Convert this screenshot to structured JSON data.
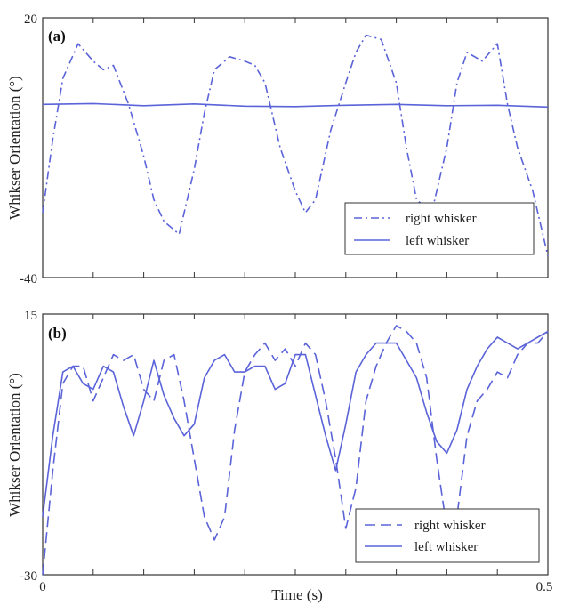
{
  "colors": {
    "series": "#5a63d8",
    "frame": "#333333",
    "background": "#ffffff"
  },
  "x_axis_title": "Time (s)",
  "chart_data": [
    {
      "type": "line",
      "panel_label": "(a)",
      "ylabel": "Whikser Orientation (°)",
      "xlabel": "",
      "xlim": [
        0,
        0.5
      ],
      "ylim": [
        -40,
        20
      ],
      "yticks_labeled": [
        -40,
        20
      ],
      "legend": {
        "placement": "bottom-right",
        "entries": [
          "right whisker",
          "left whisker"
        ]
      },
      "series": [
        {
          "name": "right whisker",
          "style": "dash-dot",
          "x": [
            0,
            0.01,
            0.02,
            0.035,
            0.05,
            0.06,
            0.07,
            0.085,
            0.1,
            0.11,
            0.12,
            0.135,
            0.15,
            0.16,
            0.17,
            0.185,
            0.2,
            0.21,
            0.22,
            0.235,
            0.25,
            0.26,
            0.27,
            0.285,
            0.3,
            0.31,
            0.32,
            0.335,
            0.35,
            0.36,
            0.37,
            0.385,
            0.4,
            0.41,
            0.42,
            0.435,
            0.45,
            0.46,
            0.47,
            0.485,
            0.5
          ],
          "values": [
            -25,
            -8,
            6,
            14,
            10,
            8,
            9,
            0,
            -12,
            -22,
            -27,
            -30,
            -15,
            -2,
            8,
            11,
            10,
            9,
            5,
            -10,
            -20,
            -25,
            -22,
            -6,
            5,
            12,
            16,
            15,
            5,
            -10,
            -22,
            -25,
            -10,
            5,
            12,
            10,
            14,
            0,
            -10,
            -20,
            -35
          ]
        },
        {
          "name": "left whisker",
          "style": "solid",
          "x": [
            0,
            0.05,
            0.1,
            0.15,
            0.2,
            0.25,
            0.3,
            0.35,
            0.4,
            0.45,
            0.5
          ],
          "values": [
            0,
            0.2,
            -0.3,
            0.1,
            -0.4,
            -0.5,
            -0.2,
            0.0,
            -0.3,
            -0.2,
            -0.6
          ]
        }
      ]
    },
    {
      "type": "line",
      "panel_label": "(b)",
      "ylabel": "Whikser Orientation (°)",
      "xlabel": "Time (s)",
      "xlim": [
        0,
        0.5
      ],
      "ylim": [
        -30,
        15
      ],
      "xticks_labeled": [
        "0",
        "0.5"
      ],
      "yticks_labeled": [
        -30,
        15
      ],
      "legend": {
        "placement": "bottom-right",
        "entries": [
          "right whisker",
          "left whisker"
        ]
      },
      "series": [
        {
          "name": "right whisker",
          "style": "dashed",
          "x": [
            0,
            0.01,
            0.02,
            0.03,
            0.04,
            0.05,
            0.06,
            0.07,
            0.08,
            0.09,
            0.1,
            0.11,
            0.12,
            0.13,
            0.14,
            0.15,
            0.16,
            0.17,
            0.18,
            0.19,
            0.2,
            0.21,
            0.22,
            0.23,
            0.24,
            0.25,
            0.26,
            0.27,
            0.28,
            0.29,
            0.3,
            0.31,
            0.32,
            0.33,
            0.34,
            0.35,
            0.36,
            0.37,
            0.38,
            0.39,
            0.4,
            0.41,
            0.42,
            0.43,
            0.44,
            0.45,
            0.46,
            0.47,
            0.48,
            0.49,
            0.5
          ],
          "values": [
            -30,
            -12,
            3,
            6,
            6,
            0,
            4,
            8,
            7,
            8,
            2,
            0,
            7,
            8,
            0,
            -10,
            -20,
            -24,
            -20,
            -5,
            5,
            8,
            10,
            7,
            9,
            6,
            10,
            8,
            0,
            -10,
            -22,
            -15,
            0,
            6,
            10,
            13,
            12,
            10,
            4,
            -10,
            -22,
            -20,
            -6,
            0,
            2,
            5,
            4,
            8,
            10,
            10,
            12
          ]
        },
        {
          "name": "left whisker",
          "style": "solid",
          "x": [
            0,
            0.01,
            0.02,
            0.03,
            0.04,
            0.05,
            0.06,
            0.07,
            0.08,
            0.09,
            0.1,
            0.11,
            0.12,
            0.13,
            0.14,
            0.15,
            0.16,
            0.17,
            0.18,
            0.19,
            0.2,
            0.21,
            0.22,
            0.23,
            0.24,
            0.25,
            0.26,
            0.27,
            0.28,
            0.29,
            0.3,
            0.31,
            0.32,
            0.33,
            0.34,
            0.35,
            0.36,
            0.37,
            0.38,
            0.39,
            0.4,
            0.41,
            0.42,
            0.43,
            0.44,
            0.45,
            0.46,
            0.47,
            0.48,
            0.49,
            0.5
          ],
          "values": [
            -20,
            -6,
            5,
            6,
            3,
            2,
            6,
            5,
            -1,
            -6,
            0,
            7,
            1,
            -3,
            -6,
            -4,
            4,
            7,
            8,
            5,
            5,
            6,
            6,
            2,
            3,
            8,
            8,
            1,
            -6,
            -12,
            -4,
            5,
            8,
            10,
            10,
            10,
            7,
            4,
            -2,
            -7,
            -9,
            -5,
            2,
            6,
            9,
            11,
            10,
            9,
            10,
            11,
            12
          ]
        }
      ]
    }
  ]
}
